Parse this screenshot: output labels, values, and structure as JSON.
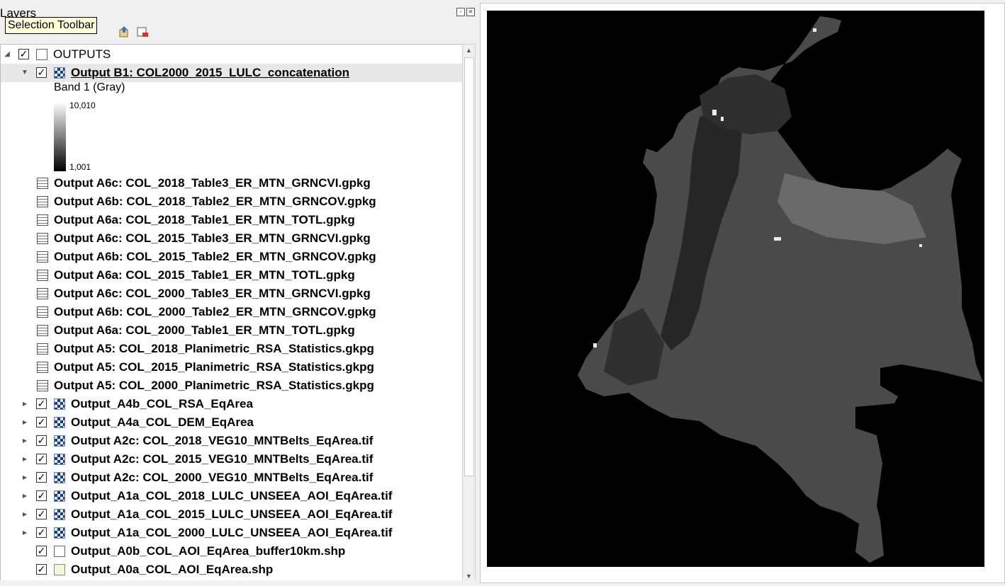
{
  "panel": {
    "title": "Layers"
  },
  "tooltip": {
    "text": "Selection Toolbar"
  },
  "group": {
    "label": "OUTPUTS"
  },
  "selected_layer": {
    "label": "Output B1: COL2000_2015_LULC_concatenation",
    "legend": {
      "band": "Band 1 (Gray)",
      "max": "10,010",
      "min": "1,001"
    }
  },
  "tables": [
    "Output A6c: COL_2018_Table3_ER_MTN_GRNCVI.gpkg",
    "Output A6b: COL_2018_Table2_ER_MTN_GRNCOV.gpkg",
    "Output A6a: COL_2018_Table1_ER_MTN_TOTL.gpkg",
    "Output A6c: COL_2015_Table3_ER_MTN_GRNCVI.gpkg",
    "Output A6b: COL_2015_Table2_ER_MTN_GRNCOV.gpkg",
    "Output A6a: COL_2015_Table1_ER_MTN_TOTL.gpkg",
    "Output A6c: COL_2000_Table3_ER_MTN_GRNCVI.gpkg",
    "Output A6b: COL_2000_Table2_ER_MTN_GRNCOV.gpkg",
    "Output A6a: COL_2000_Table1_ER_MTN_TOTL.gpkg",
    "Output A5: COL_2018_Planimetric_RSA_Statistics.gkpg",
    "Output A5: COL_2015_Planimetric_RSA_Statistics.gkpg",
    "Output A5: COL_2000_Planimetric_RSA_Statistics.gkpg"
  ],
  "rasters": [
    "Output_A4b_COL_RSA_EqArea",
    "Output_A4a_COL_DEM_EqArea",
    "Output A2c: COL_2018_VEG10_MNTBelts_EqArea.tif",
    "Output A2c: COL_2015_VEG10_MNTBelts_EqArea.tif",
    "Output A2c: COL_2000_VEG10_MNTBelts_EqArea.tif",
    "Output_A1a_COL_2018_LULC_UNSEEA_AOI_EqArea.tif",
    "Output_A1a_COL_2015_LULC_UNSEEA_AOI_EqArea.tif",
    "Output_A1a_COL_2000_LULC_UNSEEA_AOI_EqArea.tif"
  ],
  "vectors": [
    {
      "label": "Output_A0b_COL_AOI_EqArea_buffer10km.shp",
      "icon": "polygon-outline-icon"
    },
    {
      "label": "Output_A0a_COL_AOI_EqArea.shp",
      "icon": "polygon-filled-icon"
    }
  ],
  "colors": {
    "map_background": "#000000",
    "country_fill": "#555555"
  }
}
